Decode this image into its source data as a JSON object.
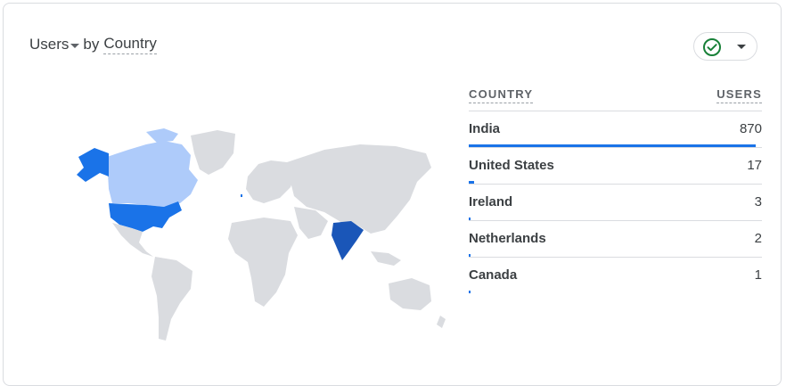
{
  "card": {
    "metric_label": "Users",
    "by_label": "by",
    "dimension_label": "Country"
  },
  "colors": {
    "bar": "#1a73e8",
    "india": "#1a56b8",
    "united_states": "#1a73e8",
    "canada": "#aecbfa",
    "land": "#dadce0",
    "check": "#188038"
  },
  "table": {
    "header_country": "COUNTRY",
    "header_users": "USERS",
    "rows": [
      {
        "country": "India",
        "users": "870",
        "share": 1.0
      },
      {
        "country": "United States",
        "users": "17",
        "share": 0.0195
      },
      {
        "country": "Ireland",
        "users": "3",
        "share": 0.0035
      },
      {
        "country": "Netherlands",
        "users": "2",
        "share": 0.0023
      },
      {
        "country": "Canada",
        "users": "1",
        "share": 0.0012
      }
    ]
  }
}
